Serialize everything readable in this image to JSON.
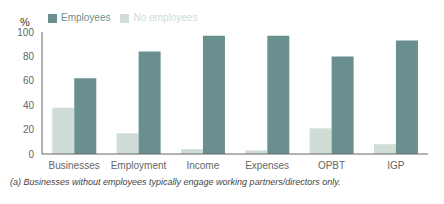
{
  "chart_data": {
    "type": "bar",
    "categories": [
      "Businesses",
      "Employment",
      "Income",
      "Expenses",
      "OPBT",
      "IGP"
    ],
    "series": [
      {
        "name": "No employees",
        "color": "#d0dcd6",
        "values": [
          38,
          17,
          4,
          3,
          21,
          8
        ]
      },
      {
        "name": "Employees",
        "color": "#6a8f8f",
        "values": [
          62,
          84,
          97,
          97,
          80,
          93
        ]
      }
    ],
    "y_label": "%",
    "ylim": [
      0,
      100
    ],
    "yticks": [
      0,
      20,
      40,
      60,
      80,
      100
    ],
    "grid": false,
    "legend": "upper left",
    "annotations": [
      "(a) Businesses without employees typically engage working partners/directors only."
    ]
  }
}
